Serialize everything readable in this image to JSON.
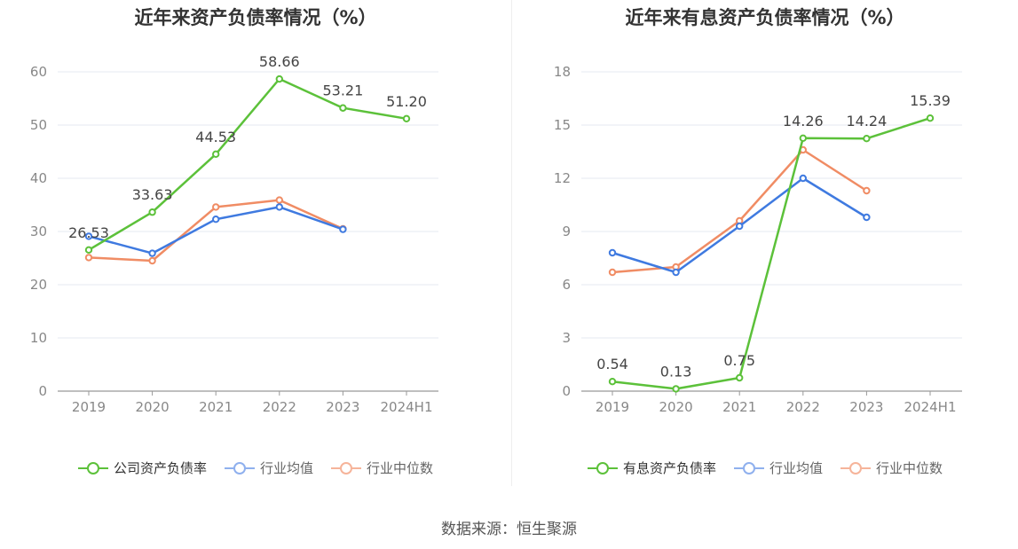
{
  "source": "数据来源：恒生聚源",
  "colors": {
    "company": "#5cc13a",
    "avg": "#3f7ae0",
    "median": "#f08c64"
  },
  "chart_data": [
    {
      "type": "line",
      "title": "近年来资产负债率情况（%）",
      "categories": [
        "2019",
        "2020",
        "2021",
        "2022",
        "2023",
        "2024H1"
      ],
      "ylim": [
        0,
        60
      ],
      "yticks": [
        0,
        10,
        20,
        30,
        40,
        50,
        60
      ],
      "grid": true,
      "legend_position": "bottom",
      "series": [
        {
          "name": "公司资产负债率",
          "values": [
            26.53,
            33.63,
            44.53,
            58.66,
            53.21,
            51.2
          ],
          "labels": [
            "26.53",
            "33.63",
            "44.53",
            "58.66",
            "53.21",
            "51.20"
          ],
          "color": "#5cc13a"
        },
        {
          "name": "行业均值",
          "values": [
            29.1,
            25.9,
            32.3,
            34.6,
            30.4,
            null
          ],
          "color": "#3f7ae0"
        },
        {
          "name": "行业中位数",
          "values": [
            25.1,
            24.5,
            34.6,
            35.9,
            30.5,
            null
          ],
          "color": "#f08c64"
        }
      ]
    },
    {
      "type": "line",
      "title": "近年来有息资产负债率情况（%）",
      "categories": [
        "2019",
        "2020",
        "2021",
        "2022",
        "2023",
        "2024H1"
      ],
      "ylim": [
        0,
        18
      ],
      "yticks": [
        0,
        3,
        6,
        9,
        12,
        15,
        18
      ],
      "grid": true,
      "legend_position": "bottom",
      "series": [
        {
          "name": "有息资产负债率",
          "values": [
            0.54,
            0.13,
            0.75,
            14.26,
            14.24,
            15.39
          ],
          "labels": [
            "0.54",
            "0.13",
            "0.75",
            "14.26",
            "14.24",
            "15.39"
          ],
          "color": "#5cc13a"
        },
        {
          "name": "行业均值",
          "values": [
            7.8,
            6.7,
            9.3,
            12.0,
            9.8,
            null
          ],
          "color": "#3f7ae0"
        },
        {
          "name": "行业中位数",
          "values": [
            6.7,
            7.0,
            9.6,
            13.6,
            11.3,
            null
          ],
          "color": "#f08c64"
        }
      ]
    }
  ]
}
